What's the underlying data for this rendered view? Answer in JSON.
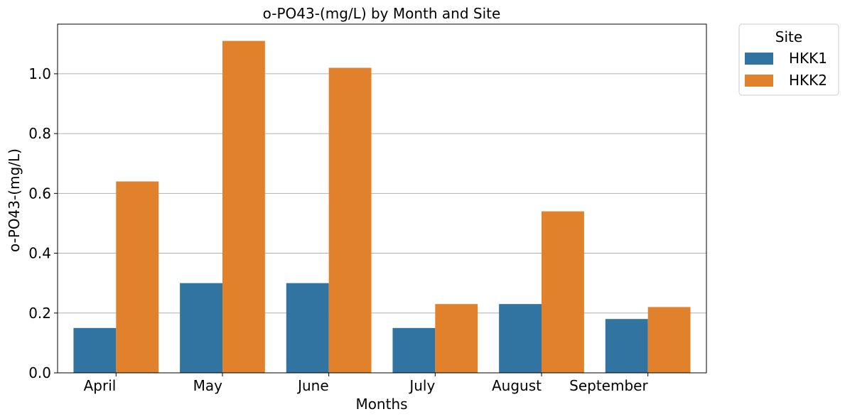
{
  "chart_data": {
    "type": "bar",
    "title": "o-PO43-(mg/L) by Month and Site",
    "xlabel": "Months",
    "ylabel": "o-PO43-(mg/L)",
    "categories": [
      "April",
      "May",
      "June",
      "July",
      "August",
      "September"
    ],
    "series": [
      {
        "name": "HKK1",
        "color": "#3274a1",
        "values": [
          0.15,
          0.3,
          0.3,
          0.15,
          0.23,
          0.18
        ]
      },
      {
        "name": "HKK2",
        "color": "#e1812c",
        "values": [
          0.64,
          1.11,
          1.02,
          0.23,
          0.54,
          0.22
        ]
      }
    ],
    "ylim": [
      0,
      1.166
    ],
    "yticks": [
      "0.0",
      "0.2",
      "0.4",
      "0.6",
      "0.8",
      "1.0"
    ],
    "grid": "y",
    "legend": {
      "title": "Site",
      "placement": "outside-top-right"
    }
  }
}
